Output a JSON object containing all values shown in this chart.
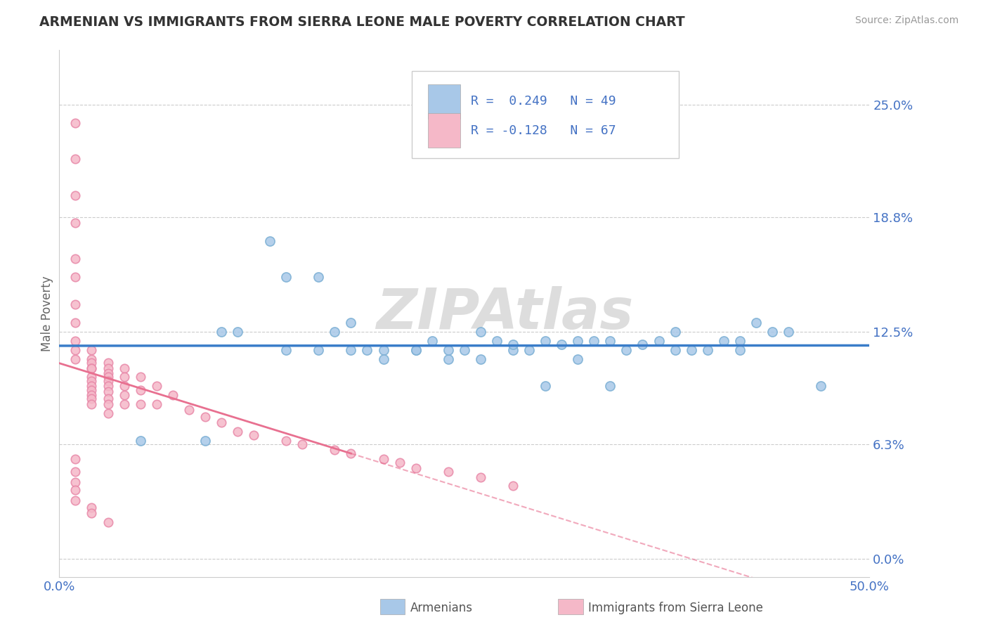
{
  "title": "ARMENIAN VS IMMIGRANTS FROM SIERRA LEONE MALE POVERTY CORRELATION CHART",
  "source": "Source: ZipAtlas.com",
  "ylabel": "Male Poverty",
  "xlim": [
    0.0,
    0.5
  ],
  "ylim": [
    -0.01,
    0.28
  ],
  "yticks": [
    0.0,
    0.063,
    0.125,
    0.188,
    0.25
  ],
  "ytick_labels": [
    "0.0%",
    "6.3%",
    "12.5%",
    "18.8%",
    "25.0%"
  ],
  "R1": 0.249,
  "N1": 49,
  "R2": -0.128,
  "N2": 67,
  "blue_color": "#a8c8e8",
  "blue_edge_color": "#7bafd4",
  "pink_color": "#f5b8c8",
  "pink_edge_color": "#e888a8",
  "blue_line_color": "#3a7dc9",
  "pink_line_color": "#e87090",
  "watermark": "ZIPAtlas",
  "legend_R1_text": "R =  0.249   N = 49",
  "legend_R2_text": "R = -0.128   N = 67",
  "blue_x": [
    0.05,
    0.09,
    0.1,
    0.11,
    0.13,
    0.14,
    0.16,
    0.17,
    0.18,
    0.19,
    0.2,
    0.22,
    0.23,
    0.24,
    0.25,
    0.26,
    0.27,
    0.28,
    0.29,
    0.3,
    0.31,
    0.32,
    0.33,
    0.34,
    0.35,
    0.36,
    0.37,
    0.38,
    0.39,
    0.4,
    0.41,
    0.42,
    0.43,
    0.44,
    0.45,
    0.47,
    0.14,
    0.16,
    0.18,
    0.2,
    0.22,
    0.24,
    0.26,
    0.28,
    0.3,
    0.32,
    0.34,
    0.38,
    0.42
  ],
  "blue_y": [
    0.065,
    0.065,
    0.125,
    0.125,
    0.175,
    0.155,
    0.155,
    0.125,
    0.13,
    0.115,
    0.115,
    0.115,
    0.12,
    0.11,
    0.115,
    0.125,
    0.12,
    0.115,
    0.115,
    0.12,
    0.118,
    0.12,
    0.12,
    0.12,
    0.115,
    0.118,
    0.12,
    0.125,
    0.115,
    0.115,
    0.12,
    0.12,
    0.13,
    0.125,
    0.125,
    0.095,
    0.115,
    0.115,
    0.115,
    0.11,
    0.115,
    0.115,
    0.11,
    0.118,
    0.095,
    0.11,
    0.095,
    0.115,
    0.115
  ],
  "pink_x": [
    0.01,
    0.01,
    0.01,
    0.01,
    0.01,
    0.01,
    0.01,
    0.01,
    0.01,
    0.01,
    0.01,
    0.02,
    0.02,
    0.02,
    0.02,
    0.02,
    0.02,
    0.02,
    0.02,
    0.02,
    0.02,
    0.02,
    0.02,
    0.03,
    0.03,
    0.03,
    0.03,
    0.03,
    0.03,
    0.03,
    0.03,
    0.03,
    0.03,
    0.04,
    0.04,
    0.04,
    0.04,
    0.04,
    0.05,
    0.05,
    0.05,
    0.06,
    0.06,
    0.07,
    0.08,
    0.09,
    0.1,
    0.11,
    0.12,
    0.14,
    0.15,
    0.17,
    0.18,
    0.2,
    0.21,
    0.22,
    0.24,
    0.26,
    0.28,
    0.01,
    0.01,
    0.01,
    0.01,
    0.01,
    0.02,
    0.02,
    0.03
  ],
  "pink_y": [
    0.24,
    0.22,
    0.2,
    0.185,
    0.165,
    0.155,
    0.14,
    0.13,
    0.12,
    0.115,
    0.11,
    0.115,
    0.11,
    0.108,
    0.105,
    0.105,
    0.1,
    0.098,
    0.095,
    0.093,
    0.09,
    0.088,
    0.085,
    0.108,
    0.105,
    0.102,
    0.1,
    0.098,
    0.095,
    0.092,
    0.088,
    0.085,
    0.08,
    0.105,
    0.1,
    0.095,
    0.09,
    0.085,
    0.1,
    0.093,
    0.085,
    0.095,
    0.085,
    0.09,
    0.082,
    0.078,
    0.075,
    0.07,
    0.068,
    0.065,
    0.063,
    0.06,
    0.058,
    0.055,
    0.053,
    0.05,
    0.048,
    0.045,
    0.04,
    0.055,
    0.048,
    0.042,
    0.038,
    0.032,
    0.028,
    0.025,
    0.02
  ]
}
